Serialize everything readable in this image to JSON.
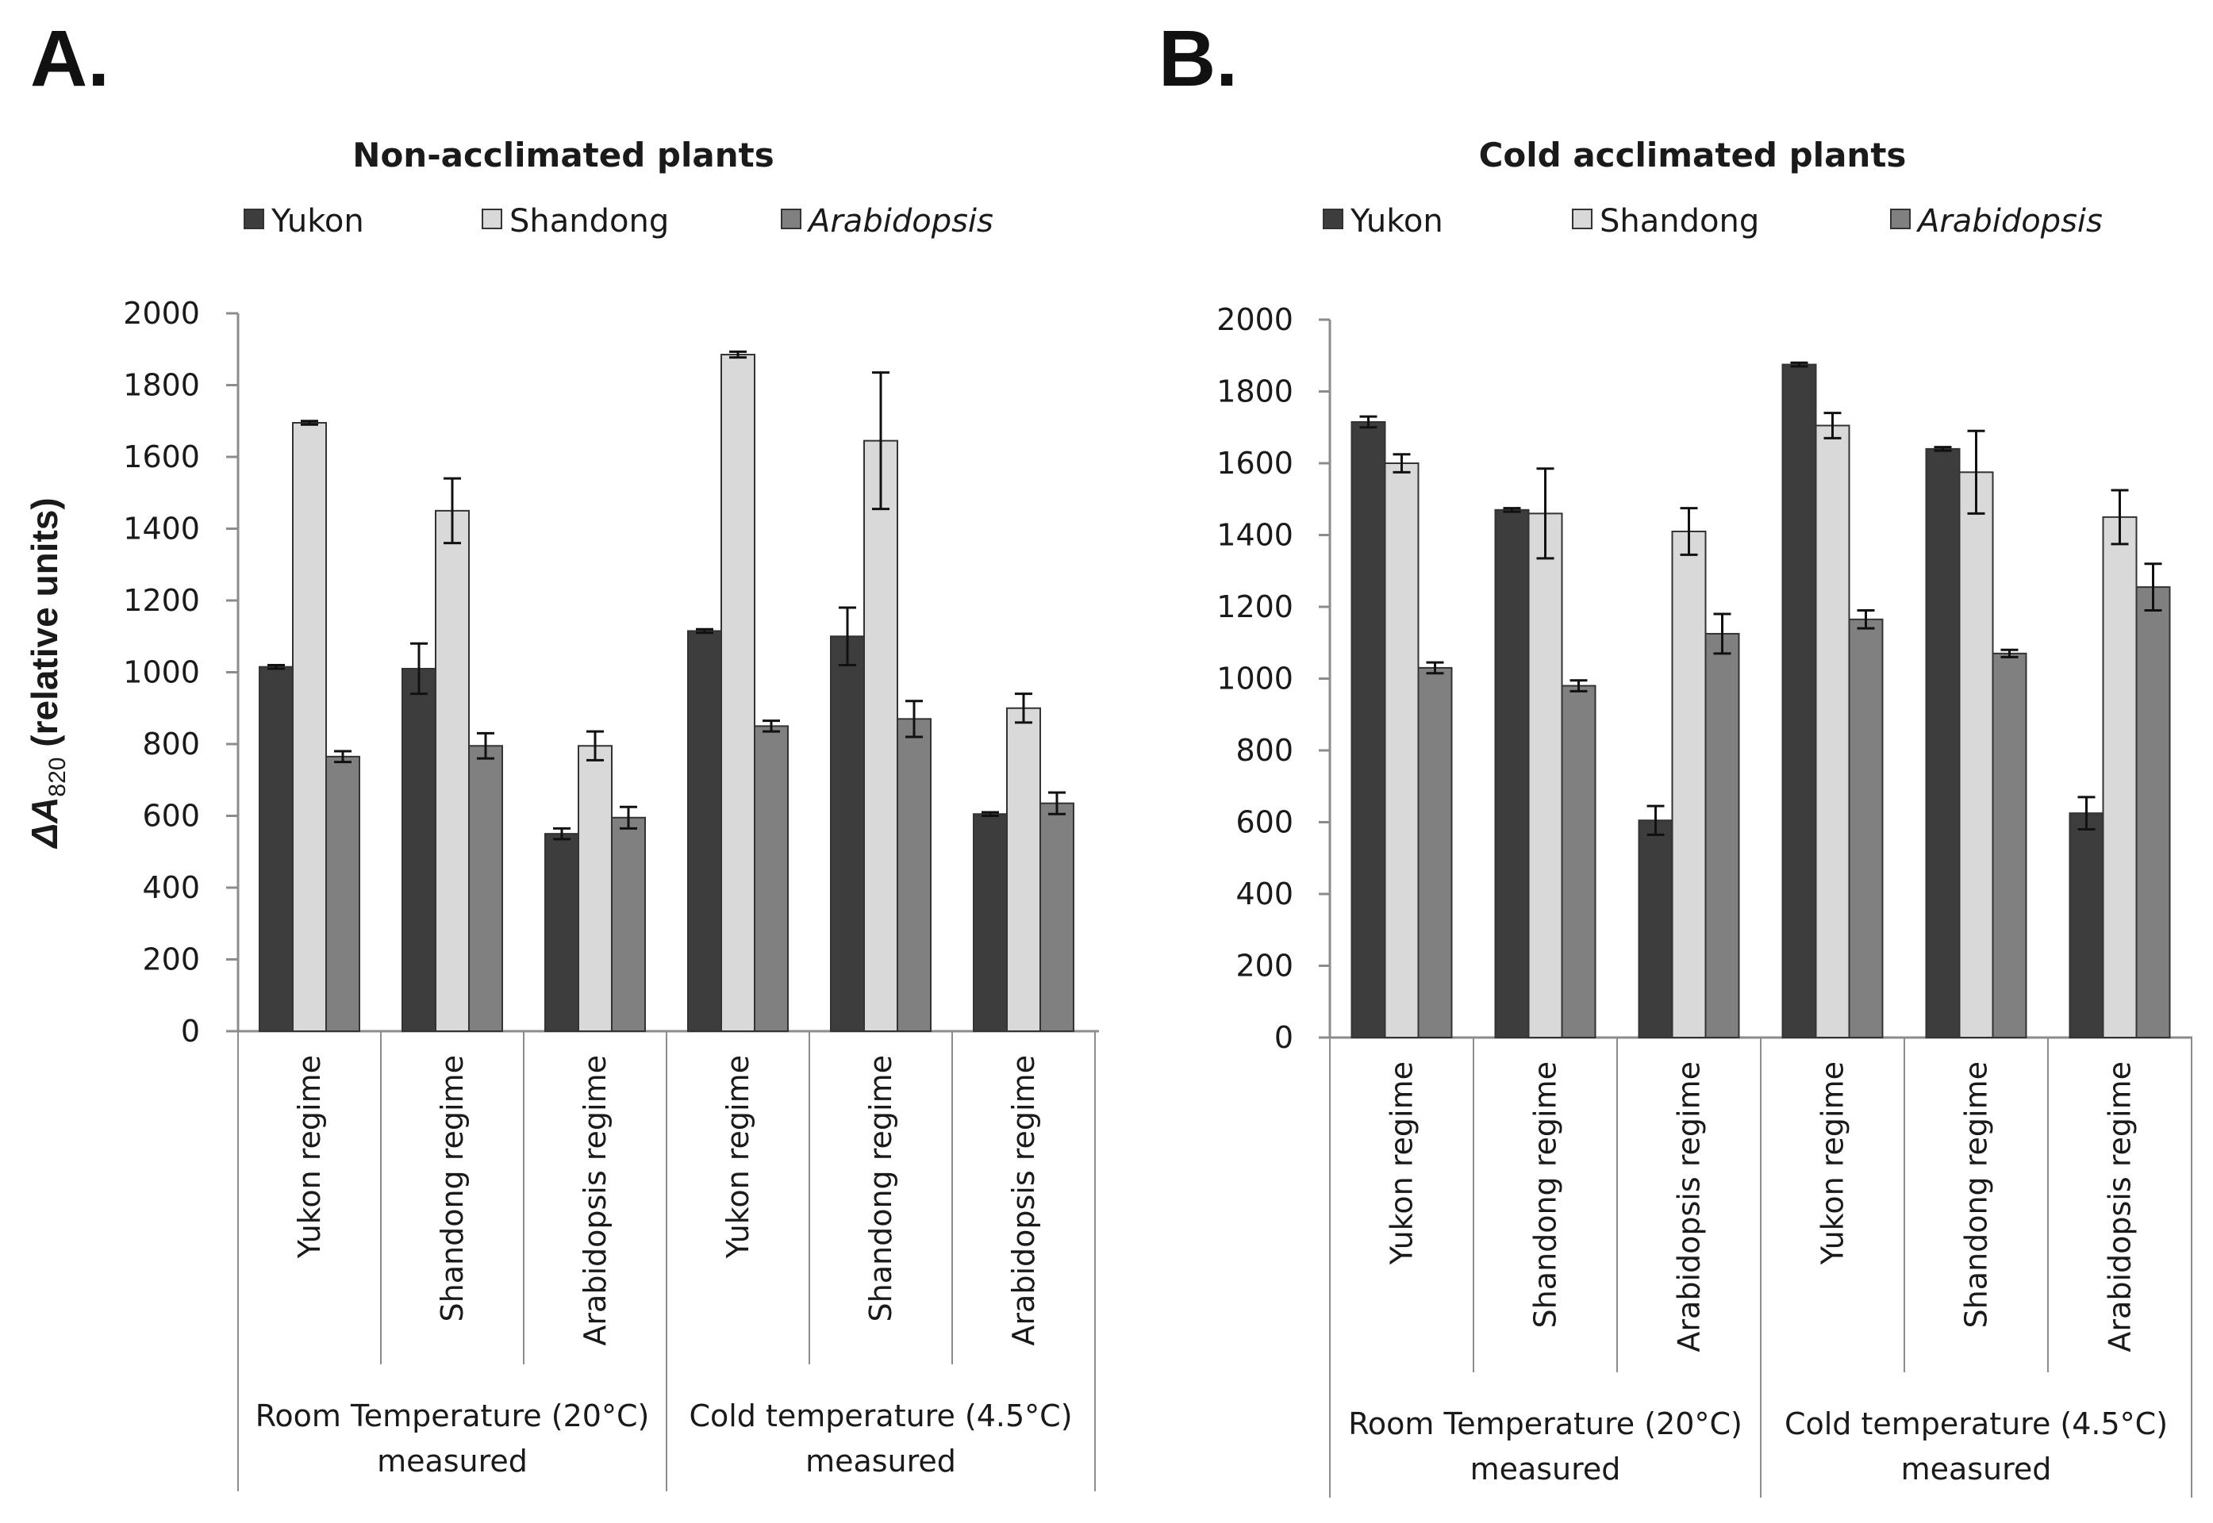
{
  "panels": [
    {
      "letter": "A.",
      "title": "Non-acclimated plants"
    },
    {
      "letter": "B.",
      "title": "Cold acclimated plants"
    }
  ],
  "ylabel": {
    "prefix": "ΔA",
    "subscript": "820",
    "suffix": " (relative units)"
  },
  "colors": {
    "Yukon": "#3d3d3d",
    "Shandong": "#d9d9d9",
    "Arabidopsis": "#808080",
    "axis": "#8c8c8c",
    "bar_edge": "#333333"
  },
  "chart_data": [
    {
      "type": "bar",
      "title": "Non-acclimated plants",
      "ylabel": "ΔA820 (relative units)",
      "ylim": [
        0,
        2000
      ],
      "yticks": [
        0,
        200,
        400,
        600,
        800,
        1000,
        1200,
        1400,
        1600,
        1800,
        2000
      ],
      "legend": "top",
      "legend_entries": [
        "Yukon",
        "Shandong",
        "Arabidopsis"
      ],
      "categories": [
        "Yukon regime",
        "Shandong regime",
        "Arabidopsis regime",
        "Yukon regime",
        "Shandong regime",
        "Arabidopsis regime"
      ],
      "groups": [
        "Room Temperature (20°C) measured",
        "Cold temperature (4.5°C) measured"
      ],
      "series": [
        {
          "name": "Yukon",
          "values": [
            1015,
            1010,
            550,
            1115,
            1100,
            605
          ],
          "errors": [
            5,
            70,
            15,
            5,
            80,
            5
          ]
        },
        {
          "name": "Shandong",
          "values": [
            1695,
            1450,
            795,
            1885,
            1645,
            900
          ],
          "errors": [
            5,
            90,
            40,
            8,
            190,
            40
          ]
        },
        {
          "name": "Arabidopsis",
          "values": [
            765,
            795,
            595,
            850,
            870,
            635
          ],
          "errors": [
            15,
            35,
            30,
            15,
            50,
            30
          ]
        }
      ]
    },
    {
      "type": "bar",
      "title": "Cold acclimated plants",
      "ylabel": "",
      "ylim": [
        0,
        2000
      ],
      "yticks": [
        0,
        200,
        400,
        600,
        800,
        1000,
        1200,
        1400,
        1600,
        1800,
        2000
      ],
      "legend": "top",
      "legend_entries": [
        "Yukon",
        "Shandong",
        "Arabidopsis"
      ],
      "categories": [
        "Yukon regime",
        "Shandong regime",
        "Arabidopsis regime",
        "Yukon regime",
        "Shandong regime",
        "Arabidopsis regime"
      ],
      "groups": [
        "Room Temperature (20°C) measured",
        "Cold temperature (4.5°C) measured"
      ],
      "series": [
        {
          "name": "Yukon",
          "values": [
            1715,
            1470,
            605,
            1875,
            1640,
            625
          ],
          "errors": [
            15,
            5,
            40,
            5,
            5,
            45
          ]
        },
        {
          "name": "Shandong",
          "values": [
            1600,
            1460,
            1410,
            1705,
            1575,
            1450
          ],
          "errors": [
            25,
            125,
            65,
            35,
            115,
            75
          ]
        },
        {
          "name": "Arabidopsis",
          "values": [
            1030,
            980,
            1125,
            1165,
            1070,
            1255
          ],
          "errors": [
            15,
            15,
            55,
            25,
            10,
            65
          ]
        }
      ]
    }
  ]
}
